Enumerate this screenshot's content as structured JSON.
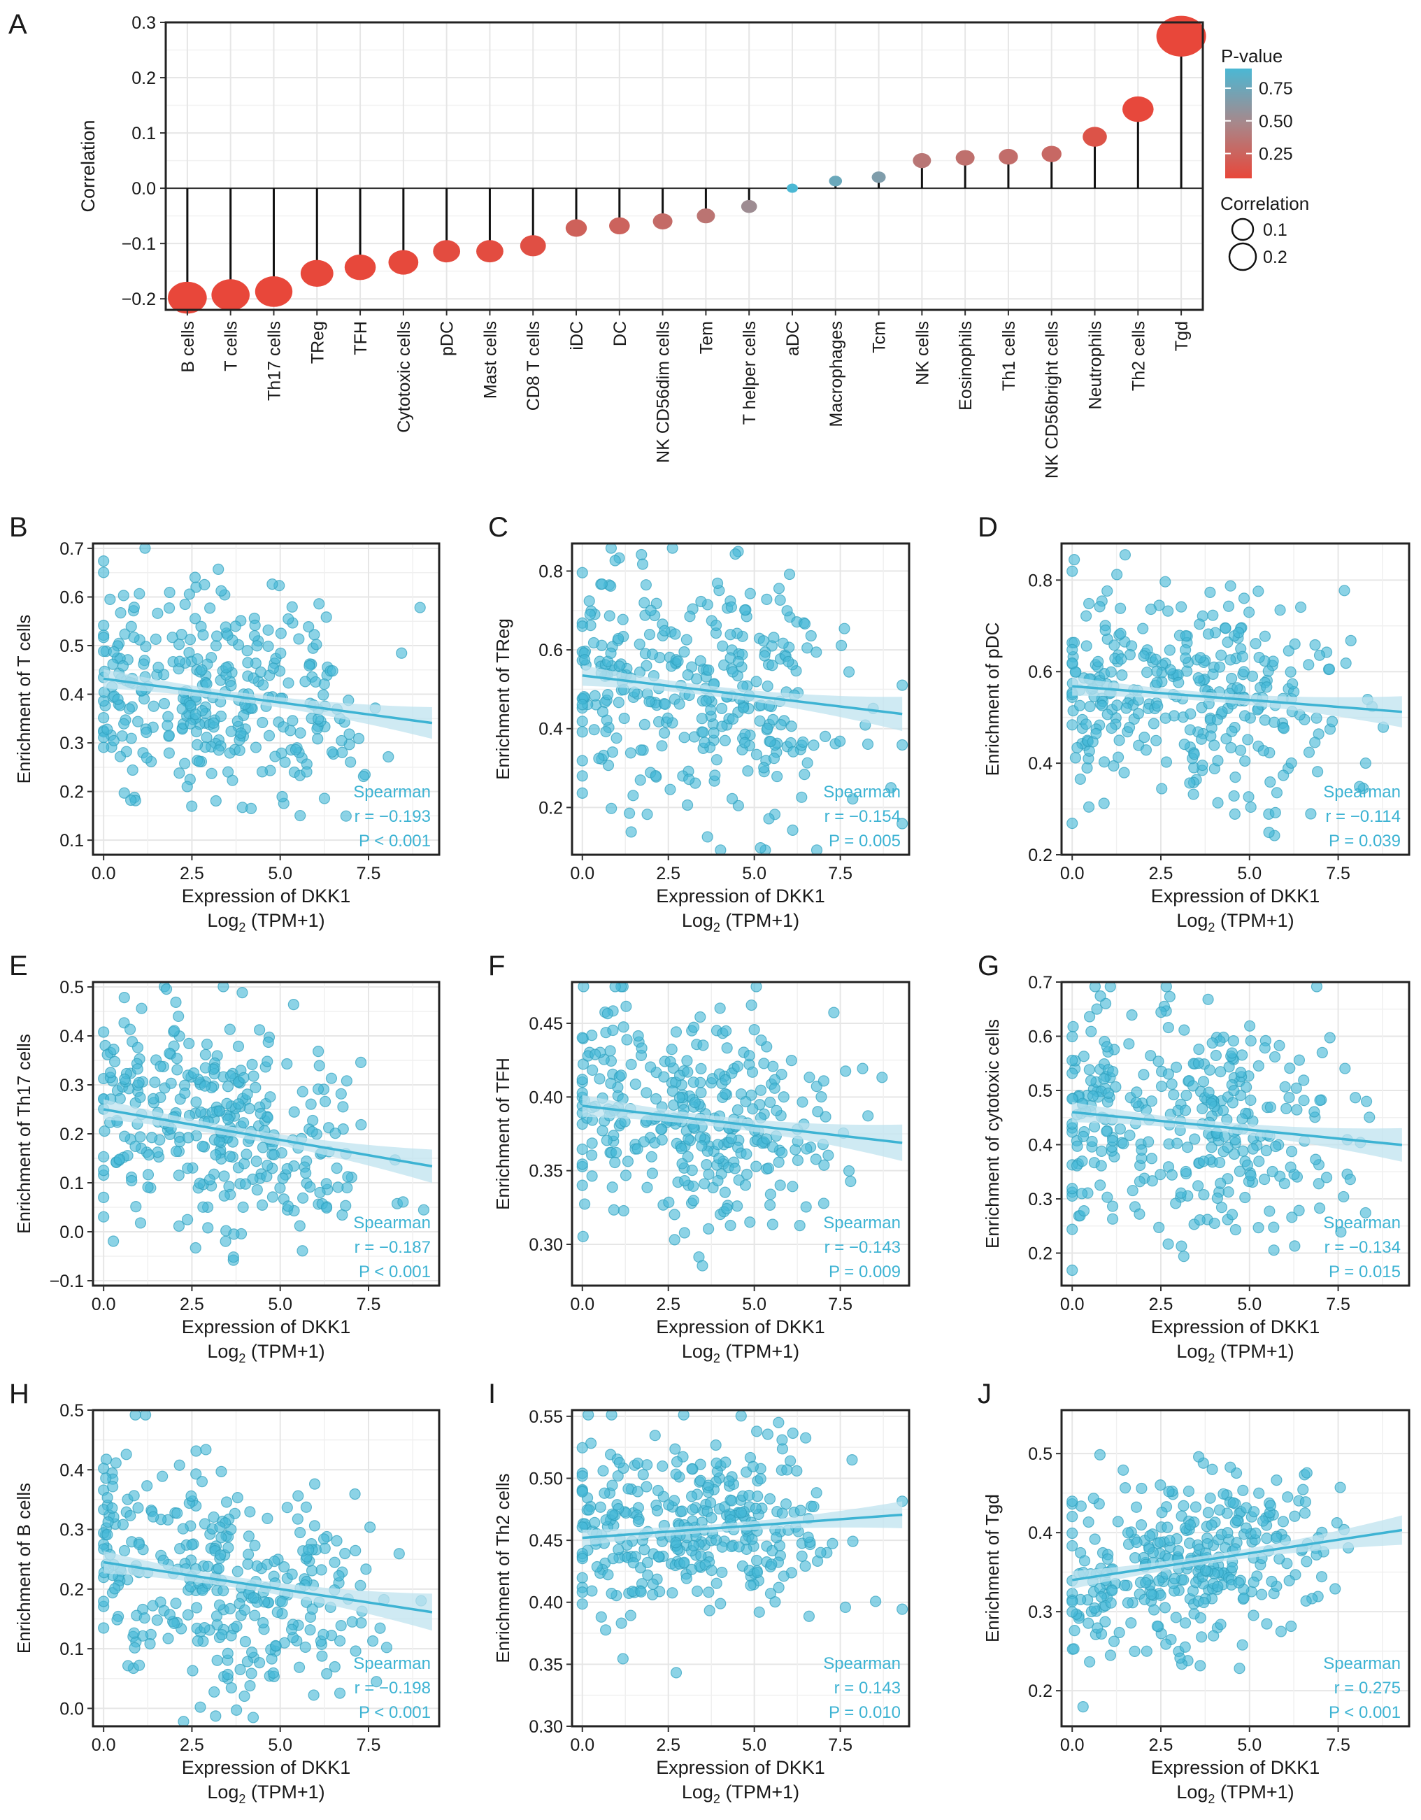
{
  "colors": {
    "point": "#46B8D6",
    "point_stroke": "#2E9FBE",
    "fit_line": "#3DB3D3",
    "ci_band": "#BFE3EF",
    "grid": "#E6E6E6",
    "pvalue_high": "#4BB8D4",
    "pvalue_mid": "#A8878A",
    "pvalue_low": "#E8473A"
  },
  "chart_data": [
    {
      "id": "A",
      "type": "lollipop",
      "panel_label": "A",
      "ylabel": "Correlation",
      "ylim": [
        -0.22,
        0.3
      ],
      "yticks": [
        -0.2,
        -0.1,
        0.0,
        0.1,
        0.2,
        0.3
      ],
      "ytick_labels": [
        "−0.2",
        "−0.1",
        "0.0",
        "0.1",
        "0.2",
        "0.3"
      ],
      "categories": [
        "B cells",
        "T cells",
        "Th17 cells",
        "TReg",
        "TFH",
        "Cytotoxic cells",
        "pDC",
        "Mast cells",
        "CD8 T cells",
        "iDC",
        "DC",
        "NK CD56dim cells",
        "Tem",
        "T helper cells",
        "aDC",
        "Macrophages",
        "Tcm",
        "NK cells",
        "Eosinophils",
        "Th1 cells",
        "NK CD56bright cells",
        "Neutrophils",
        "Th2 cells",
        "Tgd"
      ],
      "values": [
        -0.198,
        -0.193,
        -0.187,
        -0.154,
        -0.143,
        -0.134,
        -0.114,
        -0.114,
        -0.104,
        -0.072,
        -0.068,
        -0.06,
        -0.05,
        -0.033,
        0.0,
        0.013,
        0.02,
        0.05,
        0.055,
        0.057,
        0.062,
        0.093,
        0.143,
        0.275
      ],
      "pvalues": [
        0.001,
        0.001,
        0.001,
        0.005,
        0.009,
        0.015,
        0.039,
        0.04,
        0.06,
        0.2,
        0.22,
        0.28,
        0.35,
        0.55,
        0.99,
        0.8,
        0.7,
        0.37,
        0.32,
        0.3,
        0.26,
        0.09,
        0.01,
        0.001
      ],
      "legend": {
        "pvalue_title": "P-value",
        "pvalue_ticks": [
          "0.75",
          "0.50",
          "0.25"
        ],
        "size_title": "Correlation",
        "size_ticks": [
          "0.1",
          "0.2"
        ]
      }
    },
    {
      "id": "B",
      "type": "scatter",
      "panel_label": "B",
      "ylabel": "Enrichment of T cells",
      "xlabel": "Expression of DKK1",
      "xlabel2_pre": "Log",
      "xlabel2_sub": "2",
      "xlabel2_post": " (TPM+1)",
      "xlim": [
        -0.3,
        9.5
      ],
      "ylim": [
        0.07,
        0.71
      ],
      "xticks": [
        0,
        2.5,
        5,
        7.5
      ],
      "xtick_labels": [
        "0.0",
        "2.5",
        "5.0",
        "7.5"
      ],
      "yticks": [
        0.1,
        0.2,
        0.3,
        0.4,
        0.5,
        0.6,
        0.7
      ],
      "ytick_labels": [
        "0.1",
        "0.2",
        "0.3",
        "0.4",
        "0.5",
        "0.6",
        "0.7"
      ],
      "fit": {
        "intercept": 0.432,
        "slope": -0.0098,
        "ci": 0.021
      },
      "spread": 0.11,
      "seed": 11,
      "stats": {
        "method": "Spearman",
        "r": "r = −0.193",
        "p": "P < 0.001"
      }
    },
    {
      "id": "C",
      "type": "scatter",
      "panel_label": "C",
      "ylabel": "Enrichment of TReg",
      "xlabel": "Expression of DKK1",
      "xlabel2_pre": "Log",
      "xlabel2_sub": "2",
      "xlabel2_post": " (TPM+1)",
      "xlim": [
        -0.3,
        9.5
      ],
      "ylim": [
        0.08,
        0.87
      ],
      "xticks": [
        0,
        2.5,
        5,
        7.5
      ],
      "xtick_labels": [
        "0.0",
        "2.5",
        "5.0",
        "7.5"
      ],
      "yticks": [
        0.2,
        0.4,
        0.6,
        0.8
      ],
      "ytick_labels": [
        "0.2",
        "0.4",
        "0.6",
        "0.8"
      ],
      "fit": {
        "intercept": 0.535,
        "slope": -0.0105,
        "ci": 0.028
      },
      "spread": 0.15,
      "seed": 23,
      "stats": {
        "method": "Spearman",
        "r": "r = −0.154",
        "p": "P = 0.005"
      }
    },
    {
      "id": "D",
      "type": "scatter",
      "panel_label": "D",
      "ylabel": "Enrichment of pDC",
      "xlabel": "Expression of DKK1",
      "xlabel2_pre": "Log",
      "xlabel2_sub": "2",
      "xlabel2_post": " (TPM+1)",
      "xlim": [
        -0.3,
        9.5
      ],
      "ylim": [
        0.2,
        0.88
      ],
      "xticks": [
        0,
        2.5,
        5,
        7.5
      ],
      "xtick_labels": [
        "0.0",
        "2.5",
        "5.0",
        "7.5"
      ],
      "yticks": [
        0.2,
        0.4,
        0.6,
        0.8
      ],
      "ytick_labels": [
        "0.2",
        "0.4",
        "0.6",
        "0.8"
      ],
      "fit": {
        "intercept": 0.568,
        "slope": -0.006,
        "ci": 0.022
      },
      "spread": 0.12,
      "seed": 37,
      "stats": {
        "method": "Spearman",
        "r": "r = −0.114",
        "p": "P = 0.039"
      }
    },
    {
      "id": "E",
      "type": "scatter",
      "panel_label": "E",
      "ylabel": "Enrichment of Th17 cells",
      "xlabel": "Expression of DKK1",
      "xlabel2_pre": "Log",
      "xlabel2_sub": "2",
      "xlabel2_post": " (TPM+1)",
      "xlim": [
        -0.3,
        9.5
      ],
      "ylim": [
        -0.11,
        0.51
      ],
      "xticks": [
        0,
        2.5,
        5,
        7.5
      ],
      "xtick_labels": [
        "0.0",
        "2.5",
        "5.0",
        "7.5"
      ],
      "yticks": [
        -0.1,
        0.0,
        0.1,
        0.2,
        0.3,
        0.4,
        0.5
      ],
      "ytick_labels": [
        "−0.1",
        "0.0",
        "0.1",
        "0.2",
        "0.3",
        "0.4",
        "0.5"
      ],
      "fit": {
        "intercept": 0.25,
        "slope": -0.0125,
        "ci": 0.022
      },
      "spread": 0.11,
      "seed": 41,
      "stats": {
        "method": "Spearman",
        "r": "r = −0.187",
        "p": "P < 0.001"
      }
    },
    {
      "id": "F",
      "type": "scatter",
      "panel_label": "F",
      "ylabel": "Enrichment of TFH",
      "xlabel": "Expression of DKK1",
      "xlabel2_pre": "Log",
      "xlabel2_sub": "2",
      "xlabel2_post": " (TPM+1)",
      "xlim": [
        -0.3,
        9.5
      ],
      "ylim": [
        0.272,
        0.478
      ],
      "xticks": [
        0,
        2.5,
        5,
        7.5
      ],
      "xtick_labels": [
        "0.0",
        "2.5",
        "5.0",
        "7.5"
      ],
      "yticks": [
        0.3,
        0.35,
        0.4,
        0.45
      ],
      "ytick_labels": [
        "0.30",
        "0.35",
        "0.40",
        "0.45"
      ],
      "fit": {
        "intercept": 0.394,
        "slope": -0.0027,
        "ci": 0.008
      },
      "spread": 0.038,
      "seed": 53,
      "stats": {
        "method": "Spearman",
        "r": "r = −0.143",
        "p": "P = 0.009"
      }
    },
    {
      "id": "G",
      "type": "scatter",
      "panel_label": "G",
      "ylabel": "Enrichment of cytotoxic cells",
      "xlabel": "Expression of DKK1",
      "xlabel2_pre": "Log",
      "xlabel2_sub": "2",
      "xlabel2_post": " (TPM+1)",
      "xlim": [
        -0.3,
        9.5
      ],
      "ylim": [
        0.14,
        0.7
      ],
      "xticks": [
        0,
        2.5,
        5,
        7.5
      ],
      "xtick_labels": [
        "0.0",
        "2.5",
        "5.0",
        "7.5"
      ],
      "yticks": [
        0.2,
        0.3,
        0.4,
        0.5,
        0.6,
        0.7
      ],
      "ytick_labels": [
        "0.2",
        "0.3",
        "0.4",
        "0.5",
        "0.6",
        "0.7"
      ],
      "fit": {
        "intercept": 0.46,
        "slope": -0.0065,
        "ci": 0.02
      },
      "spread": 0.1,
      "seed": 67,
      "stats": {
        "method": "Spearman",
        "r": "r = −0.134",
        "p": "P = 0.015"
      }
    },
    {
      "id": "H",
      "type": "scatter",
      "panel_label": "H",
      "ylabel": "Enrichment of B cells",
      "xlabel": "Expression of DKK1",
      "xlabel2_pre": "Log",
      "xlabel2_sub": "2",
      "xlabel2_post": " (TPM+1)",
      "xlim": [
        -0.3,
        9.5
      ],
      "ylim": [
        -0.03,
        0.5
      ],
      "xticks": [
        0,
        2.5,
        5,
        7.5
      ],
      "xtick_labels": [
        "0.0",
        "2.5",
        "5.0",
        "7.5"
      ],
      "yticks": [
        0.0,
        0.1,
        0.2,
        0.3,
        0.4,
        0.5
      ],
      "ytick_labels": [
        "0.0",
        "0.1",
        "0.2",
        "0.3",
        "0.4",
        "0.5"
      ],
      "fit": {
        "intercept": 0.245,
        "slope": -0.009,
        "ci": 0.02
      },
      "spread": 0.09,
      "seed": 79,
      "stats": {
        "method": "Spearman",
        "r": "r = −0.198",
        "p": "P < 0.001"
      }
    },
    {
      "id": "I",
      "type": "scatter",
      "panel_label": "I",
      "ylabel": "Enrichment of Th2 cells",
      "xlabel": "Expression of DKK1",
      "xlabel2_pre": "Log",
      "xlabel2_sub": "2",
      "xlabel2_post": " (TPM+1)",
      "xlim": [
        -0.3,
        9.5
      ],
      "ylim": [
        0.3,
        0.555
      ],
      "xticks": [
        0,
        2.5,
        5,
        7.5
      ],
      "xtick_labels": [
        "0.0",
        "2.5",
        "5.0",
        "7.5"
      ],
      "yticks": [
        0.3,
        0.35,
        0.4,
        0.45,
        0.5,
        0.55
      ],
      "ytick_labels": [
        "0.30",
        "0.35",
        "0.40",
        "0.45",
        "0.50",
        "0.55"
      ],
      "fit": {
        "intercept": 0.452,
        "slope": 0.002,
        "ci": 0.007
      },
      "spread": 0.036,
      "seed": 83,
      "stats": {
        "method": "Spearman",
        "r": "r = 0.143",
        "p": "P = 0.010"
      }
    },
    {
      "id": "J",
      "type": "scatter",
      "panel_label": "J",
      "ylabel": "Enrichment of Tgd",
      "xlabel": "Expression of DKK1",
      "xlabel2_pre": "Log",
      "xlabel2_sub": "2",
      "xlabel2_post": " (TPM+1)",
      "xlim": [
        -0.3,
        9.5
      ],
      "ylim": [
        0.155,
        0.555
      ],
      "xticks": [
        0,
        2.5,
        5,
        7.5
      ],
      "xtick_labels": [
        "0.0",
        "2.5",
        "5.0",
        "7.5"
      ],
      "yticks": [
        0.2,
        0.3,
        0.4,
        0.5
      ],
      "ytick_labels": [
        "0.2",
        "0.3",
        "0.4",
        "0.5"
      ],
      "fit": {
        "intercept": 0.34,
        "slope": 0.0068,
        "ci": 0.012
      },
      "spread": 0.055,
      "seed": 97,
      "stats": {
        "method": "Spearman",
        "r": "r = 0.275",
        "p": "P < 0.001"
      }
    }
  ]
}
